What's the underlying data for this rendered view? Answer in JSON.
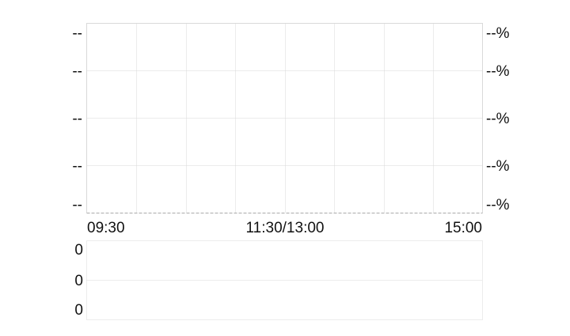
{
  "chart_data": [
    {
      "type": "line",
      "title": "",
      "x_ticks": [
        "09:30",
        "11:30/13:00",
        "15:00"
      ],
      "y_left_ticks": [
        "--",
        "--",
        "--",
        "--",
        "--"
      ],
      "y_right_ticks": [
        "--%",
        "--%",
        "--%",
        "--%",
        "--%"
      ],
      "series": [],
      "grid": true,
      "vertical_grid_divisions": 8,
      "horizontal_grid_divisions": 4,
      "colors": {
        "border": "#d9d9d9",
        "grid": "#d9d9d9",
        "baseline": "#aaaaaa",
        "text": "#111111"
      }
    },
    {
      "type": "bar",
      "title": "",
      "y_left_ticks": [
        "0",
        "0",
        "0"
      ],
      "series": [],
      "grid": true,
      "horizontal_grid_divisions": 2
    }
  ]
}
